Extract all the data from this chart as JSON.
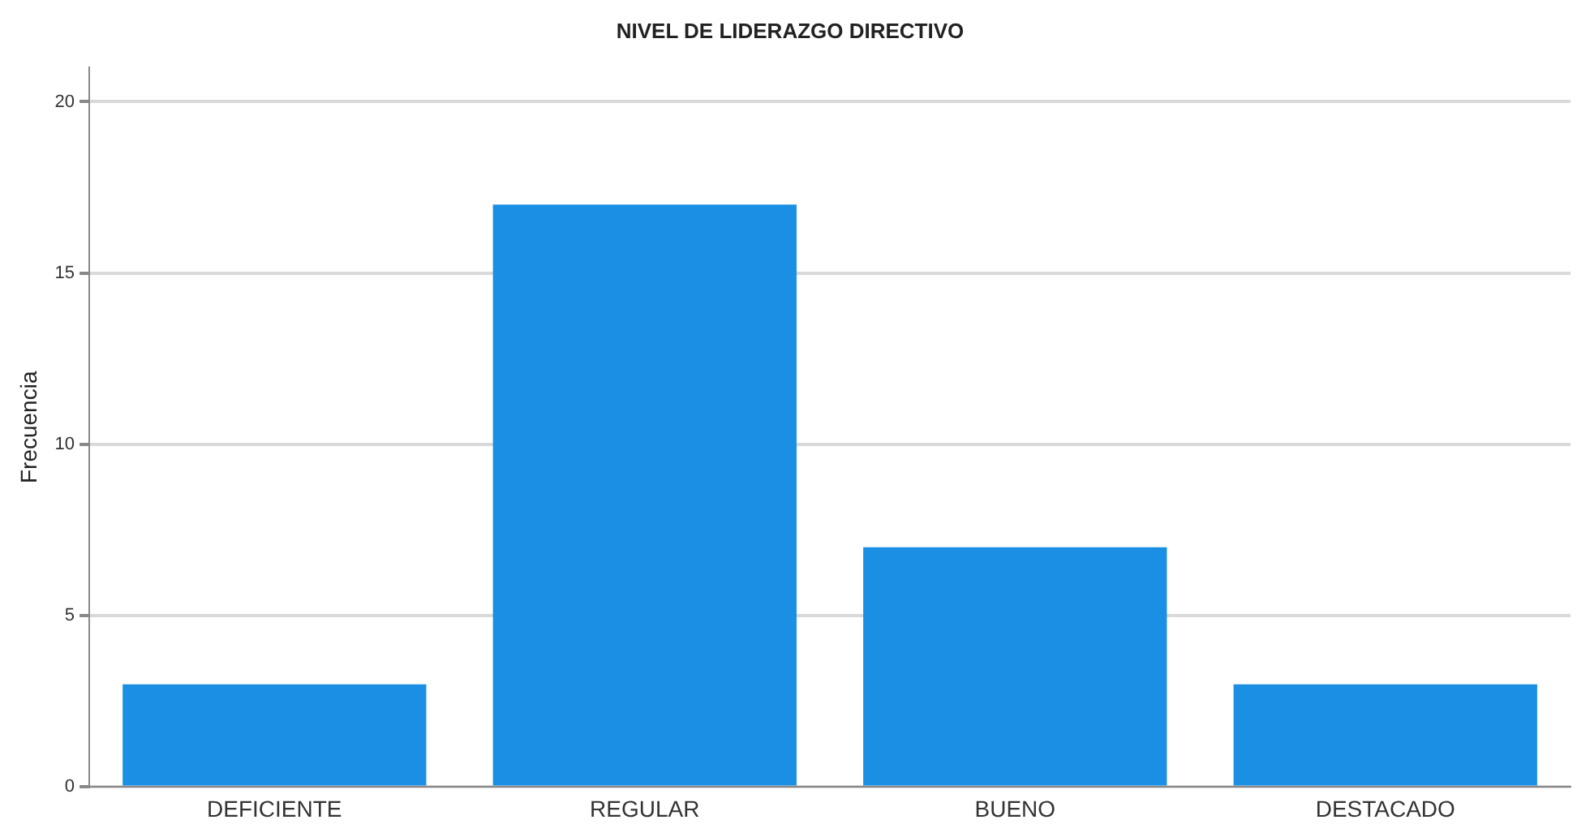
{
  "chart_data": {
    "type": "bar",
    "title": "NIVEL DE LIDERAZGO DIRECTIVO",
    "ylabel": "Frecuencia",
    "categories": [
      "DEFICIENTE",
      "REGULAR",
      "BUENO",
      "DESTACADO"
    ],
    "values": [
      3,
      17,
      7,
      3
    ],
    "color": "#1a8fe3",
    "ylim": [
      0,
      21
    ],
    "yticks": [
      0,
      5,
      10,
      15,
      20
    ],
    "grid": "y"
  }
}
